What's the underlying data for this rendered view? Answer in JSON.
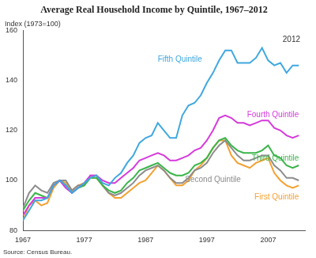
{
  "chart_data": {
    "type": "line",
    "title": "Average Real Household Income by Quintile, 1967–2012",
    "y_label": "Index (1973=100)",
    "source": "Source: Census Bureau.",
    "annotations": [
      "2012"
    ],
    "x": [
      1967,
      1968,
      1969,
      1970,
      1971,
      1972,
      1973,
      1974,
      1975,
      1976,
      1977,
      1978,
      1979,
      1980,
      1981,
      1982,
      1983,
      1984,
      1985,
      1986,
      1987,
      1988,
      1989,
      1990,
      1991,
      1992,
      1993,
      1994,
      1995,
      1996,
      1997,
      1998,
      1999,
      2000,
      2001,
      2002,
      2003,
      2004,
      2005,
      2006,
      2007,
      2008,
      2009,
      2010,
      2011,
      2012
    ],
    "series": [
      {
        "name": "Fifth Quintile",
        "color": "#3ea8e0",
        "values": [
          84,
          88,
          92,
          92,
          93,
          98,
          100,
          98,
          95,
          97,
          99,
          101,
          102,
          99,
          98,
          101,
          103,
          107,
          110,
          115,
          117,
          118,
          123,
          120,
          117,
          117,
          126,
          130,
          131,
          134,
          139,
          143,
          148,
          152,
          152,
          147,
          147,
          147,
          149,
          153,
          148,
          146,
          147,
          143,
          146,
          146
        ]
      },
      {
        "name": "Fourth Quintile",
        "color": "#d63adb",
        "values": [
          86,
          90,
          93,
          93,
          93,
          98,
          100,
          97,
          95,
          97,
          99,
          102,
          102,
          100,
          99,
          99,
          101,
          103,
          105,
          108,
          109,
          110,
          111,
          110,
          108,
          108,
          109,
          110,
          112,
          113,
          116,
          120,
          125,
          126,
          125,
          123,
          123,
          122,
          123,
          124,
          124,
          121,
          120,
          118,
          117,
          118
        ]
      },
      {
        "name": "Third Quintile",
        "color": "#3ab54a",
        "values": [
          88,
          92,
          95,
          94,
          93,
          98,
          100,
          98,
          95,
          97,
          98,
          101,
          101,
          98,
          96,
          95,
          96,
          99,
          101,
          104,
          105,
          106,
          107,
          105,
          103,
          102,
          102,
          103,
          106,
          107,
          109,
          113,
          116,
          117,
          114,
          112,
          111,
          111,
          111,
          112,
          114,
          110,
          109,
          106,
          105,
          106
        ]
      },
      {
        "name": "Second Quintile",
        "color": "#8c8c8c",
        "values": [
          89,
          95,
          98,
          96,
          95,
          99,
          100,
          100,
          96,
          98,
          98,
          102,
          102,
          98,
          95,
          94,
          95,
          97,
          99,
          102,
          104,
          105,
          106,
          104,
          101,
          99,
          99,
          101,
          104,
          105,
          107,
          111,
          114,
          116,
          113,
          110,
          108,
          108,
          109,
          110,
          110,
          106,
          104,
          101,
          101,
          100
        ]
      },
      {
        "name": "First Quintile",
        "color": "#f5a030",
        "values": [
          84,
          90,
          92,
          90,
          91,
          97,
          100,
          99,
          96,
          98,
          99,
          101,
          101,
          98,
          95,
          93,
          93,
          95,
          97,
          99,
          100,
          103,
          106,
          104,
          101,
          98,
          98,
          100,
          104,
          106,
          109,
          113,
          116,
          116,
          110,
          107,
          106,
          105,
          107,
          108,
          109,
          103,
          100,
          98,
          97,
          98
        ]
      }
    ],
    "xlim": [
      1967,
      2013
    ],
    "xticks": [
      1967,
      1977,
      1987,
      1997,
      2007
    ],
    "ylim": [
      80,
      160
    ],
    "yticks": [
      80,
      100,
      120,
      140,
      160
    ],
    "grid": false
  }
}
